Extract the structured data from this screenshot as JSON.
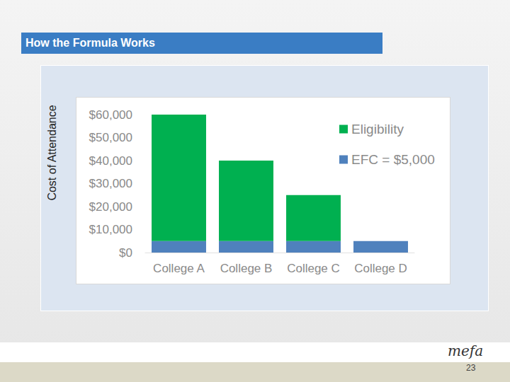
{
  "chart_data": {
    "type": "bar",
    "title": "How the Formula Works",
    "y_label": "Cost of Attendance",
    "categories": [
      "College A",
      "College B",
      "College C",
      "College D"
    ],
    "series": [
      {
        "name": "Eligibility",
        "color": "#00b050",
        "values": [
          55000,
          35000,
          20000,
          0
        ]
      },
      {
        "name": "EFC = $5,000",
        "color": "#4f81bd",
        "values": [
          5000,
          5000,
          5000,
          5000
        ]
      }
    ],
    "stacked": true,
    "ylim": [
      0,
      60000
    ],
    "yticks": [
      {
        "value": 0,
        "label": "$0"
      },
      {
        "value": 10000,
        "label": "$10,000"
      },
      {
        "value": 20000,
        "label": "$20,000"
      },
      {
        "value": 30000,
        "label": "$30,000"
      },
      {
        "value": 40000,
        "label": "$40,000"
      },
      {
        "value": 50000,
        "label": "$50,000"
      },
      {
        "value": 60000,
        "label": "$60,000"
      }
    ],
    "grid": false,
    "legend": "upper right"
  },
  "page": {
    "logo": "mefa",
    "page_number": "23"
  }
}
